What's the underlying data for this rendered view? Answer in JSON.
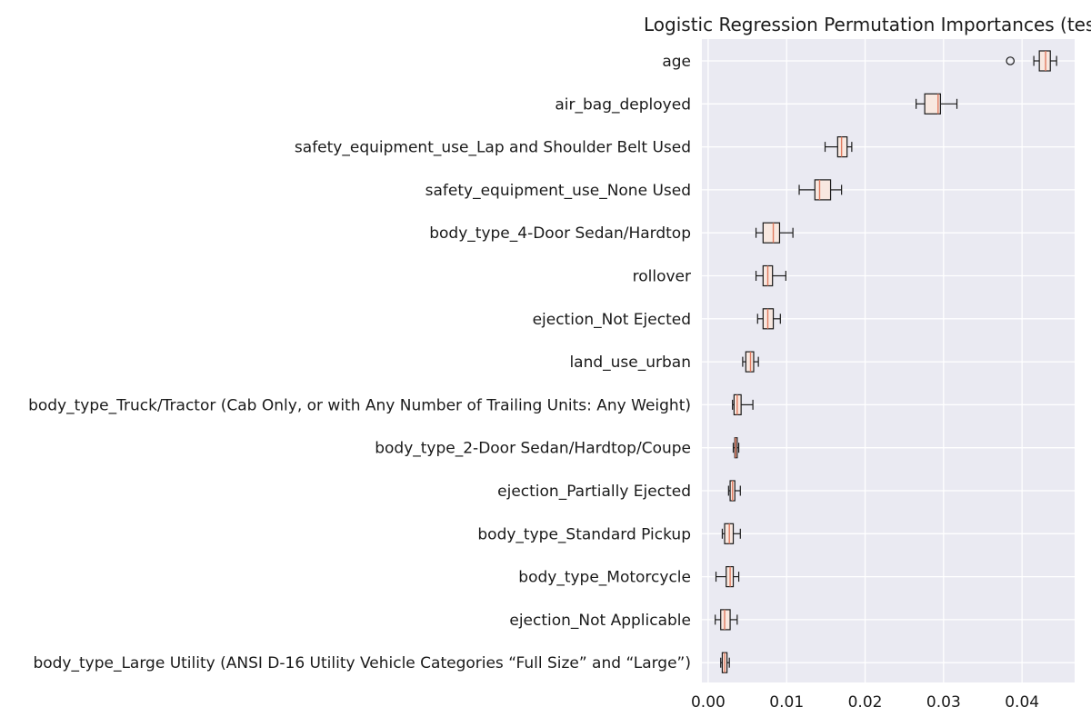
{
  "chart_data": {
    "type": "boxplot",
    "orientation": "horizontal",
    "title": "Logistic Regression Permutation Importances (tes",
    "xlabel": "",
    "ylabel": "",
    "xlim": [
      -0.0008,
      0.0467
    ],
    "xticks": [
      0.0,
      0.01,
      0.02,
      0.03,
      0.04
    ],
    "xtick_labels": [
      "0.00",
      "0.01",
      "0.02",
      "0.03",
      "0.04"
    ],
    "grid": true,
    "colors": {
      "background": "#eaeaf2",
      "grid": "#ffffff",
      "box_edge": "#1a1a1a",
      "box_fill": "#f8e8e0",
      "median": "#e07a5f"
    },
    "features": [
      {
        "name": "age",
        "whisker_low": 0.0415,
        "q1": 0.0422,
        "median": 0.043,
        "q3": 0.0436,
        "whisker_high": 0.0444,
        "outliers": [
          0.0385
        ]
      },
      {
        "name": "air_bag_deployed",
        "whisker_low": 0.0265,
        "q1": 0.0276,
        "median": 0.0293,
        "q3": 0.0296,
        "whisker_high": 0.0317,
        "outliers": []
      },
      {
        "name": "safety_equipment_use_Lap and Shoulder Belt Used",
        "whisker_low": 0.0149,
        "q1": 0.0165,
        "median": 0.017,
        "q3": 0.0177,
        "whisker_high": 0.0183,
        "outliers": []
      },
      {
        "name": "safety_equipment_use_None Used",
        "whisker_low": 0.0116,
        "q1": 0.0136,
        "median": 0.0142,
        "q3": 0.0156,
        "whisker_high": 0.017,
        "outliers": []
      },
      {
        "name": "body_type_4-Door Sedan/Hardtop",
        "whisker_low": 0.0061,
        "q1": 0.007,
        "median": 0.0083,
        "q3": 0.0091,
        "whisker_high": 0.0108,
        "outliers": []
      },
      {
        "name": "rollover",
        "whisker_low": 0.0061,
        "q1": 0.007,
        "median": 0.0076,
        "q3": 0.0082,
        "whisker_high": 0.0099,
        "outliers": []
      },
      {
        "name": "ejection_Not Ejected",
        "whisker_low": 0.0063,
        "q1": 0.007,
        "median": 0.0076,
        "q3": 0.0083,
        "whisker_high": 0.0092,
        "outliers": []
      },
      {
        "name": "land_use_urban",
        "whisker_low": 0.0044,
        "q1": 0.0048,
        "median": 0.0054,
        "q3": 0.0058,
        "whisker_high": 0.0064,
        "outliers": []
      },
      {
        "name": "body_type_Truck/Tractor (Cab Only, or with Any Number of Trailing Units: Any Weight)",
        "whisker_low": 0.0031,
        "q1": 0.0033,
        "median": 0.0037,
        "q3": 0.0042,
        "whisker_high": 0.0057,
        "outliers": []
      },
      {
        "name": "body_type_2-Door Sedan/Hardtop/Coupe",
        "whisker_low": 0.0032,
        "q1": 0.0034,
        "median": 0.0035,
        "q3": 0.0037,
        "whisker_high": 0.0039,
        "outliers": []
      },
      {
        "name": "ejection_Partially Ejected",
        "whisker_low": 0.0026,
        "q1": 0.0028,
        "median": 0.0031,
        "q3": 0.0034,
        "whisker_high": 0.0041,
        "outliers": []
      },
      {
        "name": "body_type_Standard Pickup",
        "whisker_low": 0.0018,
        "q1": 0.0021,
        "median": 0.0027,
        "q3": 0.0032,
        "whisker_high": 0.0041,
        "outliers": []
      },
      {
        "name": "body_type_Motorcycle",
        "whisker_low": 0.001,
        "q1": 0.0023,
        "median": 0.0028,
        "q3": 0.0032,
        "whisker_high": 0.0039,
        "outliers": []
      },
      {
        "name": "ejection_Not Applicable",
        "whisker_low": 0.0009,
        "q1": 0.0016,
        "median": 0.0021,
        "q3": 0.0028,
        "whisker_high": 0.0037,
        "outliers": []
      },
      {
        "name": "body_type_Large Utility (ANSI D-16 Utility Vehicle Categories “Full Size” and “Large”)",
        "whisker_low": 0.0016,
        "q1": 0.0018,
        "median": 0.0021,
        "q3": 0.0024,
        "whisker_high": 0.0027,
        "outliers": []
      }
    ]
  }
}
